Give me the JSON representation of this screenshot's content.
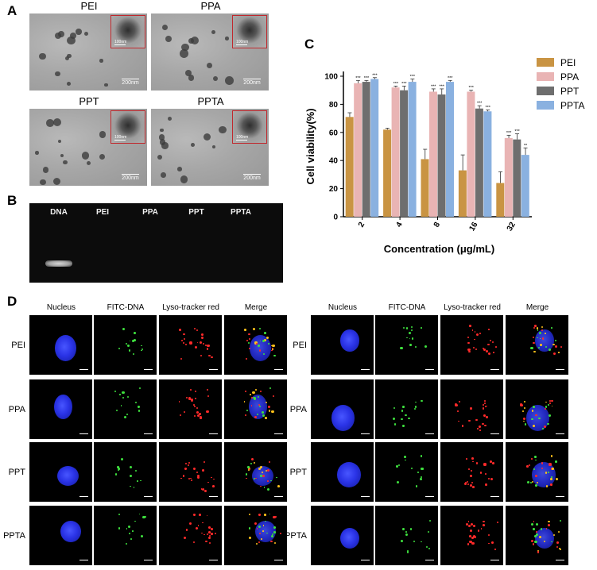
{
  "panel_a": {
    "letter": "A",
    "images": [
      {
        "label": "PEI",
        "inset_scale": "100nm",
        "scale": "200nm"
      },
      {
        "label": "PPA",
        "inset_scale": "100nm",
        "scale": "200nm"
      },
      {
        "label": "PPT",
        "inset_scale": "100nm",
        "scale": "200nm"
      },
      {
        "label": "PPTA",
        "inset_scale": "100nm",
        "scale": "200nm"
      }
    ]
  },
  "panel_b": {
    "letter": "B",
    "lanes": [
      "DNA",
      "PEI",
      "PPA",
      "PPT",
      "PPTA"
    ]
  },
  "panel_c": {
    "letter": "C"
  },
  "chart_data": {
    "type": "bar",
    "title": "",
    "xlabel": "Concentration (μg/mL)",
    "ylabel": "Cell viability(%)",
    "ylim": [
      0,
      100
    ],
    "yticks": [
      "0",
      "20",
      "40",
      "60",
      "80",
      "100"
    ],
    "categories": [
      "2",
      "4",
      "8",
      "16",
      "32"
    ],
    "legend_position": "right",
    "series": [
      {
        "name": "PEI",
        "color": "#c99443",
        "values": [
          71,
          62,
          41,
          33,
          24
        ],
        "errors": [
          3,
          1,
          7,
          11,
          8
        ],
        "sig": [
          "",
          "",
          "",
          "",
          ""
        ]
      },
      {
        "name": "PPA",
        "color": "#e9b4b4",
        "values": [
          95,
          92,
          89,
          89,
          56
        ],
        "errors": [
          2,
          1,
          2,
          1,
          2
        ],
        "sig": [
          "***",
          "***",
          "***",
          "***",
          "***"
        ]
      },
      {
        "name": "PPT",
        "color": "#6e6e6e",
        "values": [
          96,
          90,
          87,
          77,
          55
        ],
        "errors": [
          1,
          3,
          4,
          2,
          4
        ],
        "sig": [
          "***",
          "***",
          "***",
          "***",
          "***"
        ]
      },
      {
        "name": "PPTA",
        "color": "#8ab1e0",
        "values": [
          98,
          96,
          96,
          75,
          44
        ],
        "errors": [
          1,
          2,
          1,
          1,
          5
        ],
        "sig": [
          "***",
          "***",
          "***",
          "***",
          "**"
        ]
      }
    ]
  },
  "panel_d": {
    "letter": "D",
    "columns": [
      "Nucleus",
      "FITC-DNA",
      "Lyso-tracker red",
      "Merge"
    ],
    "rows": [
      "PEI",
      "PPA",
      "PPT",
      "PPTA"
    ],
    "colors": {
      "nucleus": "#2a33e6",
      "fitc": "#3ee03e",
      "lyso": "#ff2a2a",
      "merge": "#ffc21a"
    }
  }
}
